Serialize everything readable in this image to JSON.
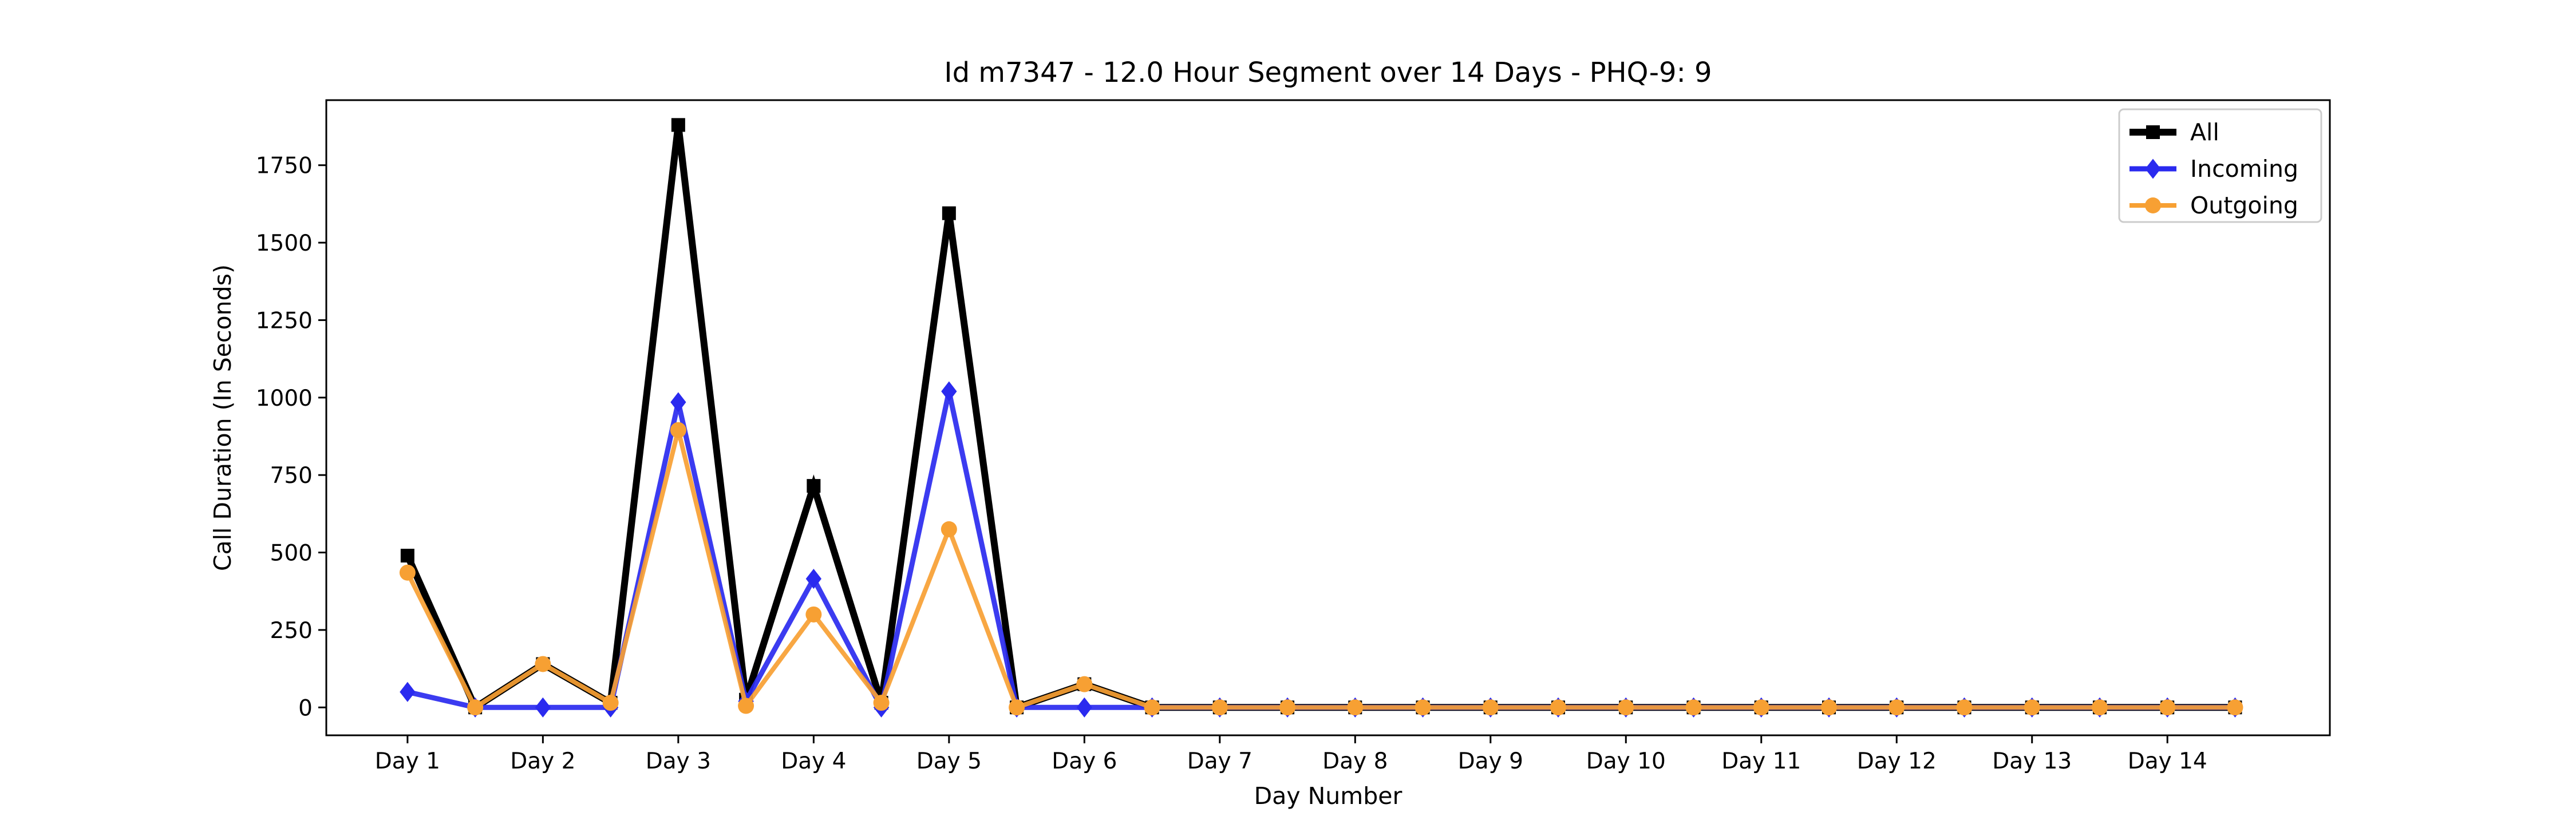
{
  "chart_data": {
    "type": "line",
    "title": "Id m7347 - 12.0 Hour Segment over 14 Days - PHQ-9: 9",
    "xlabel": "Day Number",
    "ylabel": "Call Duration (In Seconds)",
    "categories": [
      "Day 1",
      "Day 2",
      "Day 3",
      "Day 4",
      "Day 5",
      "Day 6",
      "Day 7",
      "Day 8",
      "Day 9",
      "Day 10",
      "Day 11",
      "Day 12",
      "Day 13",
      "Day 14"
    ],
    "x": [
      1,
      1.5,
      2,
      2.5,
      3,
      3.5,
      4,
      4.5,
      5,
      5.5,
      6,
      6.5,
      7,
      7.5,
      8,
      8.5,
      9,
      9.5,
      10,
      10.5,
      11,
      11.5,
      12,
      12.5,
      13,
      13.5,
      14,
      14.5
    ],
    "xlim": [
      0.4,
      15.2
    ],
    "ylim": [
      -90,
      1960
    ],
    "yticks": [
      0,
      250,
      500,
      750,
      1000,
      1250,
      1500,
      1750
    ],
    "legend_position": "top-right",
    "grid": false,
    "series": [
      {
        "name": "All",
        "color": "#000000",
        "marker": "square",
        "values": [
          490,
          0,
          140,
          15,
          1880,
          25,
          715,
          15,
          1595,
          0,
          75,
          0,
          0,
          0,
          0,
          0,
          0,
          0,
          0,
          0,
          0,
          0,
          0,
          0,
          0,
          0,
          0,
          0
        ]
      },
      {
        "name": "Incoming",
        "color": "#2a2aef",
        "marker": "diamond",
        "values": [
          50,
          0,
          0,
          0,
          985,
          20,
          415,
          0,
          1020,
          0,
          0,
          0,
          0,
          0,
          0,
          0,
          0,
          0,
          0,
          0,
          0,
          0,
          0,
          0,
          0,
          0,
          0,
          0
        ]
      },
      {
        "name": "Outgoing",
        "color": "#f7a033",
        "marker": "circle",
        "values": [
          435,
          0,
          140,
          15,
          895,
          5,
          300,
          15,
          575,
          0,
          75,
          0,
          0,
          0,
          0,
          0,
          0,
          0,
          0,
          0,
          0,
          0,
          0,
          0,
          0,
          0,
          0,
          0
        ]
      }
    ]
  }
}
